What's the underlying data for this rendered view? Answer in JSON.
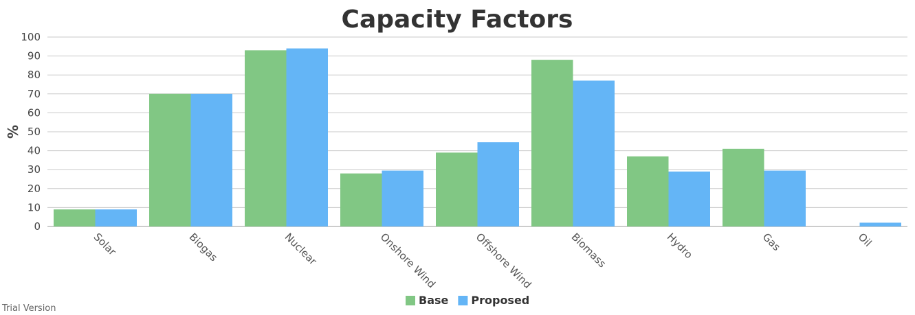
{
  "chart_data": {
    "type": "bar",
    "title": "Capacity Factors",
    "xlabel": "",
    "ylabel": "%",
    "ylim": [
      0,
      100
    ],
    "yticks": [
      0,
      10,
      20,
      30,
      40,
      50,
      60,
      70,
      80,
      90,
      100
    ],
    "categories": [
      "Solar",
      "Biogas",
      "Nuclear",
      "Onshore Wind",
      "Offshore Wind",
      "Biomass",
      "Hydro",
      "Gas",
      "Oil"
    ],
    "series": [
      {
        "name": "Base",
        "color": "#81c784",
        "values": [
          9,
          70,
          93,
          28,
          39,
          88,
          37,
          41,
          0
        ]
      },
      {
        "name": "Proposed",
        "color": "#64b5f6",
        "values": [
          9,
          70,
          94,
          29.5,
          44.5,
          77,
          29,
          29.5,
          2
        ]
      }
    ],
    "grid": true,
    "legend_position": "bottom-center"
  },
  "watermark": "Trial Version"
}
